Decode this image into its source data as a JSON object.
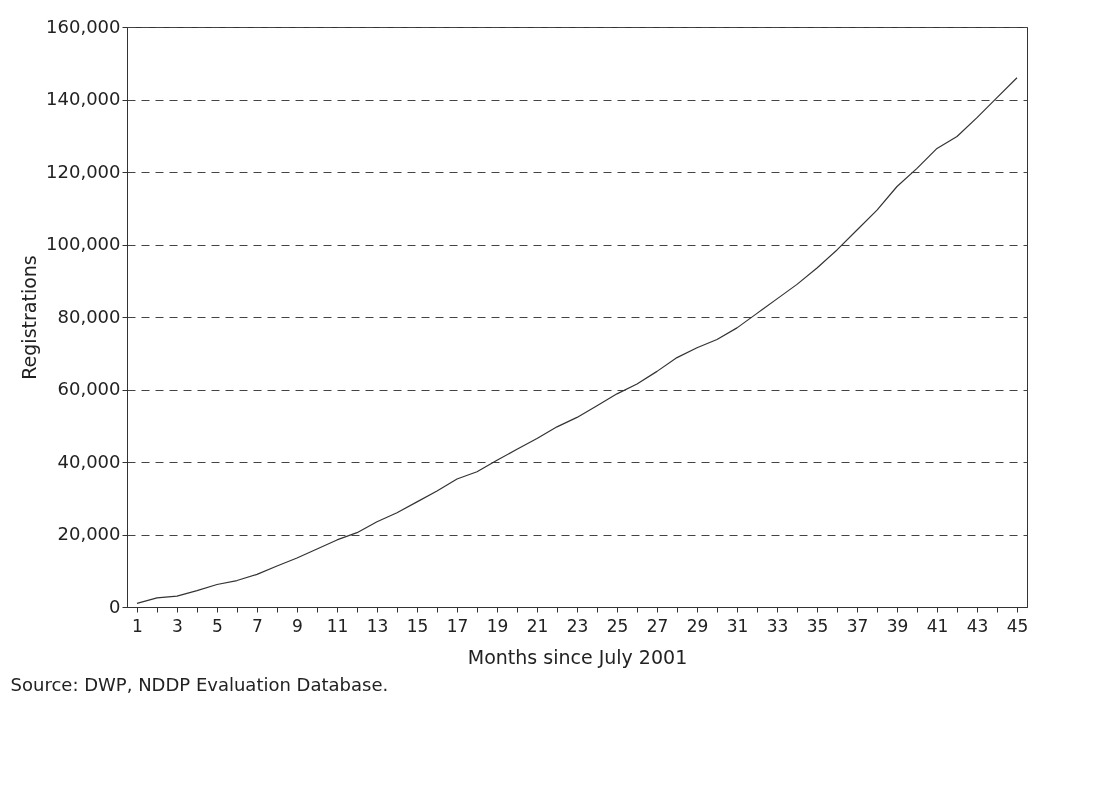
{
  "chart_data": {
    "type": "line",
    "xlabel": "Months since July 2001",
    "ylabel": "Registrations",
    "x": [
      1,
      2,
      3,
      4,
      5,
      6,
      7,
      8,
      9,
      10,
      11,
      12,
      13,
      14,
      15,
      16,
      17,
      18,
      19,
      20,
      21,
      22,
      23,
      24,
      25,
      26,
      27,
      28,
      29,
      30,
      31,
      32,
      33,
      34,
      35,
      36,
      37,
      38,
      39,
      40,
      41,
      42,
      43,
      44,
      45
    ],
    "series": [
      {
        "color": "#333333",
        "values": [
          1000,
          2500,
          3000,
          4500,
          6200,
          7300,
          9000,
          11300,
          13500,
          16000,
          18500,
          20500,
          23500,
          26000,
          29000,
          32000,
          35300,
          37300,
          40500,
          43500,
          46500,
          49700,
          52300,
          55500,
          58800,
          61500,
          65000,
          68800,
          71500,
          73800,
          77000,
          81000,
          85000,
          89000,
          93500,
          98500,
          104000,
          109500,
          116000,
          121000,
          126500,
          129800,
          135000,
          140500,
          146000
        ]
      }
    ],
    "xlim": [
      0.5,
      45.5
    ],
    "xticks": [
      1,
      {
        "value": 2,
        "label": null
      },
      3,
      {
        "value": 4,
        "label": null
      },
      5,
      {
        "value": 6,
        "label": null
      },
      7,
      {
        "value": 8,
        "label": null
      },
      9,
      {
        "value": 10,
        "label": null
      },
      11,
      {
        "value": 12,
        "label": null
      },
      13,
      {
        "value": 14,
        "label": null
      },
      15,
      {
        "value": 16,
        "label": null
      },
      17,
      {
        "value": 18,
        "label": null
      },
      19,
      {
        "value": 20,
        "label": null
      },
      21,
      {
        "value": 22,
        "label": null
      },
      23,
      {
        "value": 24,
        "label": null
      },
      25,
      {
        "value": 26,
        "label": null
      },
      27,
      {
        "value": 28,
        "label": null
      },
      29,
      {
        "value": 30,
        "label": null
      },
      31,
      {
        "value": 32,
        "label": null
      },
      33,
      {
        "value": 34,
        "label": null
      },
      35,
      {
        "value": 36,
        "label": null
      },
      37,
      {
        "value": 38,
        "label": null
      },
      39,
      {
        "value": 40,
        "label": null
      },
      41,
      {
        "value": 42,
        "label": null
      },
      43,
      {
        "value": 44,
        "label": null
      },
      45
    ],
    "ylim": [
      0,
      160000
    ],
    "yticks": [
      {
        "value": 0,
        "label": "0"
      },
      {
        "value": 20000,
        "label": "20,000"
      },
      {
        "value": 40000,
        "label": "40,000"
      },
      {
        "value": 60000,
        "label": "60,000"
      },
      {
        "value": 80000,
        "label": "80,000"
      },
      {
        "value": 100000,
        "label": "100,000"
      },
      {
        "value": 120000,
        "label": "120,000"
      },
      {
        "value": 140000,
        "label": "140,000"
      },
      {
        "value": 160000,
        "label": "160,000"
      }
    ],
    "grid": "y",
    "line_style": "solid",
    "marker": "none",
    "legend": false,
    "annotations": [
      "Source: DWP, NDDP Evaluation Database."
    ]
  }
}
